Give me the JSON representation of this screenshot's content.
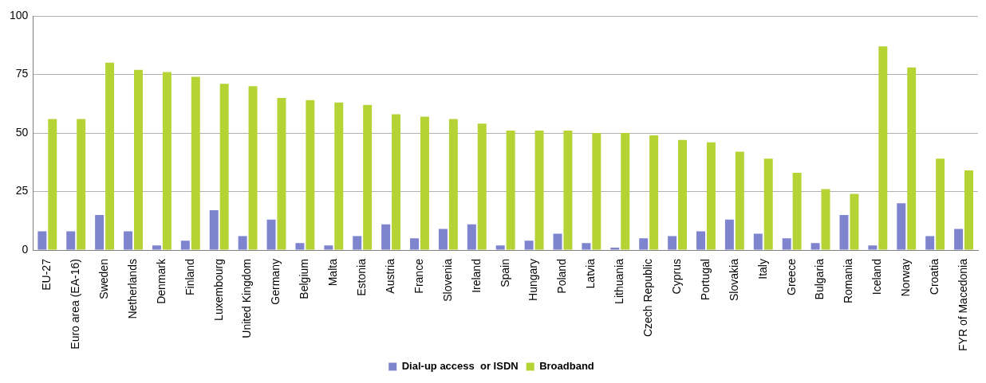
{
  "chart_data": {
    "type": "bar",
    "categories": [
      "EU-27",
      "Euro area (EA-16)",
      "Sweden",
      "Netherlands",
      "Denmark",
      "Finland",
      "Luxembourg",
      "United Kingdom",
      "Germany",
      "Belgium",
      "Malta",
      "Estonia",
      "Austria",
      "France",
      "Slovenia",
      "Ireland",
      "Spain",
      "Hungary",
      "Poland",
      "Latvia",
      "Lithuania",
      "Czech Republic",
      "Cyprus",
      "Portugal",
      "Slovakia",
      "Italy",
      "Greece",
      "Bulgaria",
      "Romania",
      "Iceland",
      "Norway",
      "Croatia",
      "FYR of Macedonia"
    ],
    "series": [
      {
        "name": "Dial-up access  or ISDN",
        "color": "#7f84cf",
        "values": [
          8,
          8,
          15,
          8,
          2,
          4,
          17,
          6,
          13,
          3,
          2,
          6,
          11,
          5,
          9,
          11,
          2,
          4,
          7,
          3,
          1,
          5,
          6,
          8,
          13,
          7,
          5,
          3,
          15,
          2,
          20,
          6,
          9
        ]
      },
      {
        "name": "Broadband",
        "color": "#b5d334",
        "values": [
          56,
          56,
          80,
          77,
          76,
          74,
          71,
          70,
          65,
          64,
          63,
          62,
          58,
          57,
          56,
          54,
          51,
          51,
          51,
          50,
          50,
          49,
          47,
          46,
          42,
          39,
          33,
          26,
          24,
          87,
          78,
          39,
          34
        ]
      }
    ],
    "ylim": [
      0,
      100
    ],
    "yticks": [
      0,
      25,
      50,
      75,
      100
    ],
    "grid": true,
    "legend": "bottom"
  }
}
